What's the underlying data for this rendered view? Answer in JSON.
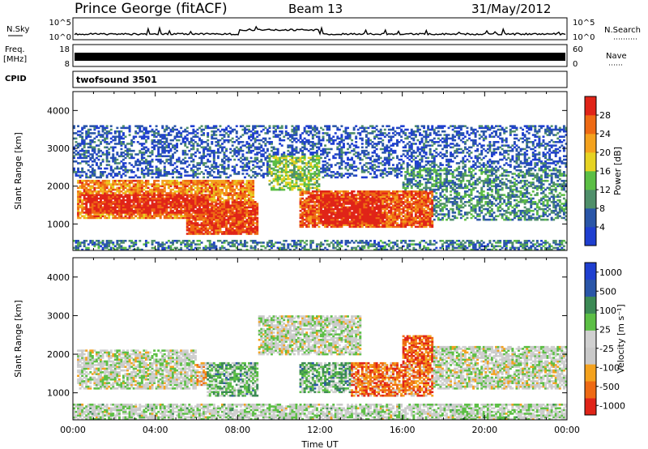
{
  "header": {
    "station": "Prince George (fitACF)",
    "beam": "Beam 13",
    "date": "31/May/2012"
  },
  "nsky_panel": {
    "left_label": "N.Sky",
    "right_label": "N.Search",
    "left_ticks": [
      "10^5",
      "10^0"
    ],
    "right_ticks": [
      "10^5",
      "10^0"
    ]
  },
  "freq_panel": {
    "left_label_line1": "Freq.",
    "left_label_line2": "[MHz]",
    "left_ticks": [
      "18",
      "8"
    ],
    "right_label": "Nave",
    "right_ticks": [
      "60",
      "0"
    ]
  },
  "cpid_panel": {
    "label": "CPID",
    "program": "twofsound 3501"
  },
  "colors": {
    "power": [
      "#1f3fd0",
      "#2a56a8",
      "#4f8f6a",
      "#5cbf45",
      "#e6d323",
      "#f4a21e",
      "#ee6a14",
      "#e02418"
    ],
    "velocity": [
      "#e02418",
      "#ee6a14",
      "#f4a21e",
      "#c9c9c9",
      "#d0d0d0",
      "#5cbf45",
      "#3c8a55",
      "#2a56a8",
      "#1f3fd0"
    ]
  },
  "chart_data": [
    {
      "type": "heatmap",
      "name_ref": "power",
      "ylabel": "Slant Range [km]",
      "y_ticks": [
        "1000",
        "2000",
        "3000",
        "4000"
      ],
      "ylim": [
        300,
        4500
      ],
      "xlim": [
        0,
        24
      ],
      "colorbar_label": "Power [dB]",
      "colorbar_ticks": [
        "4",
        "8",
        "12",
        "16",
        "20",
        "24",
        "28"
      ],
      "bands": [
        {
          "t0": 0.2,
          "t1": 8.8,
          "r0": 1150,
          "r1": 2150,
          "level": 0.75
        },
        {
          "t0": 0.5,
          "t1": 6.5,
          "r0": 1300,
          "r1": 1800,
          "level": 0.95
        },
        {
          "t0": 5.5,
          "t1": 9.0,
          "r0": 700,
          "r1": 1600,
          "level": 0.9
        },
        {
          "t0": 11.0,
          "t1": 17.5,
          "r0": 900,
          "r1": 1900,
          "level": 0.85
        },
        {
          "t0": 12.0,
          "t1": 15.0,
          "r0": 1000,
          "r1": 1700,
          "level": 1.0
        },
        {
          "t0": 9.5,
          "t1": 12.0,
          "r0": 1900,
          "r1": 2800,
          "level": 0.45
        },
        {
          "t0": 16.0,
          "t1": 24.0,
          "r0": 1100,
          "r1": 2500,
          "level": 0.3
        },
        {
          "t0": 0.0,
          "t1": 24.0,
          "r0": 300,
          "r1": 600,
          "level": 0.25
        },
        {
          "t0": 0.0,
          "t1": 24.0,
          "r0": 2200,
          "r1": 3600,
          "level": 0.15
        }
      ]
    },
    {
      "type": "heatmap",
      "name_ref": "velocity",
      "ylabel": "Slant Range [km]",
      "y_ticks": [
        "1000",
        "2000",
        "3000",
        "4000"
      ],
      "ylim": [
        300,
        4500
      ],
      "xlim": [
        0,
        24
      ],
      "xlabel": "Time UT",
      "x_ticks": [
        "00:00",
        "04:00",
        "08:00",
        "12:00",
        "16:00",
        "20:00",
        "00:00"
      ],
      "x_values": [
        0,
        4,
        8,
        12,
        16,
        20,
        24
      ],
      "colorbar_label": "Velocity [m s⁻¹]",
      "colorbar_ticks": [
        "1000",
        "500",
        "100",
        "25",
        "-25",
        "-100",
        "-500",
        "-1000"
      ],
      "bands": [
        {
          "t0": 0.2,
          "t1": 6.0,
          "r0": 1100,
          "r1": 2100,
          "level": 0.47
        },
        {
          "t0": 3.0,
          "t1": 6.5,
          "r0": 1200,
          "r1": 1800,
          "level": 0.3
        },
        {
          "t0": 6.5,
          "t1": 9.0,
          "r0": 900,
          "r1": 1800,
          "level": 0.62
        },
        {
          "t0": 11.0,
          "t1": 13.5,
          "r0": 1000,
          "r1": 1800,
          "level": 0.62
        },
        {
          "t0": 13.5,
          "t1": 17.5,
          "r0": 900,
          "r1": 1800,
          "level": 0.2
        },
        {
          "t0": 16.0,
          "t1": 17.5,
          "r0": 1800,
          "r1": 2500,
          "level": 0.15
        },
        {
          "t0": 9.0,
          "t1": 14.0,
          "r0": 2000,
          "r1": 3000,
          "level": 0.47
        },
        {
          "t0": 17.5,
          "t1": 24.0,
          "r0": 1100,
          "r1": 2200,
          "level": 0.47
        },
        {
          "t0": 0.0,
          "t1": 24.0,
          "r0": 300,
          "r1": 700,
          "level": 0.5
        }
      ]
    }
  ]
}
